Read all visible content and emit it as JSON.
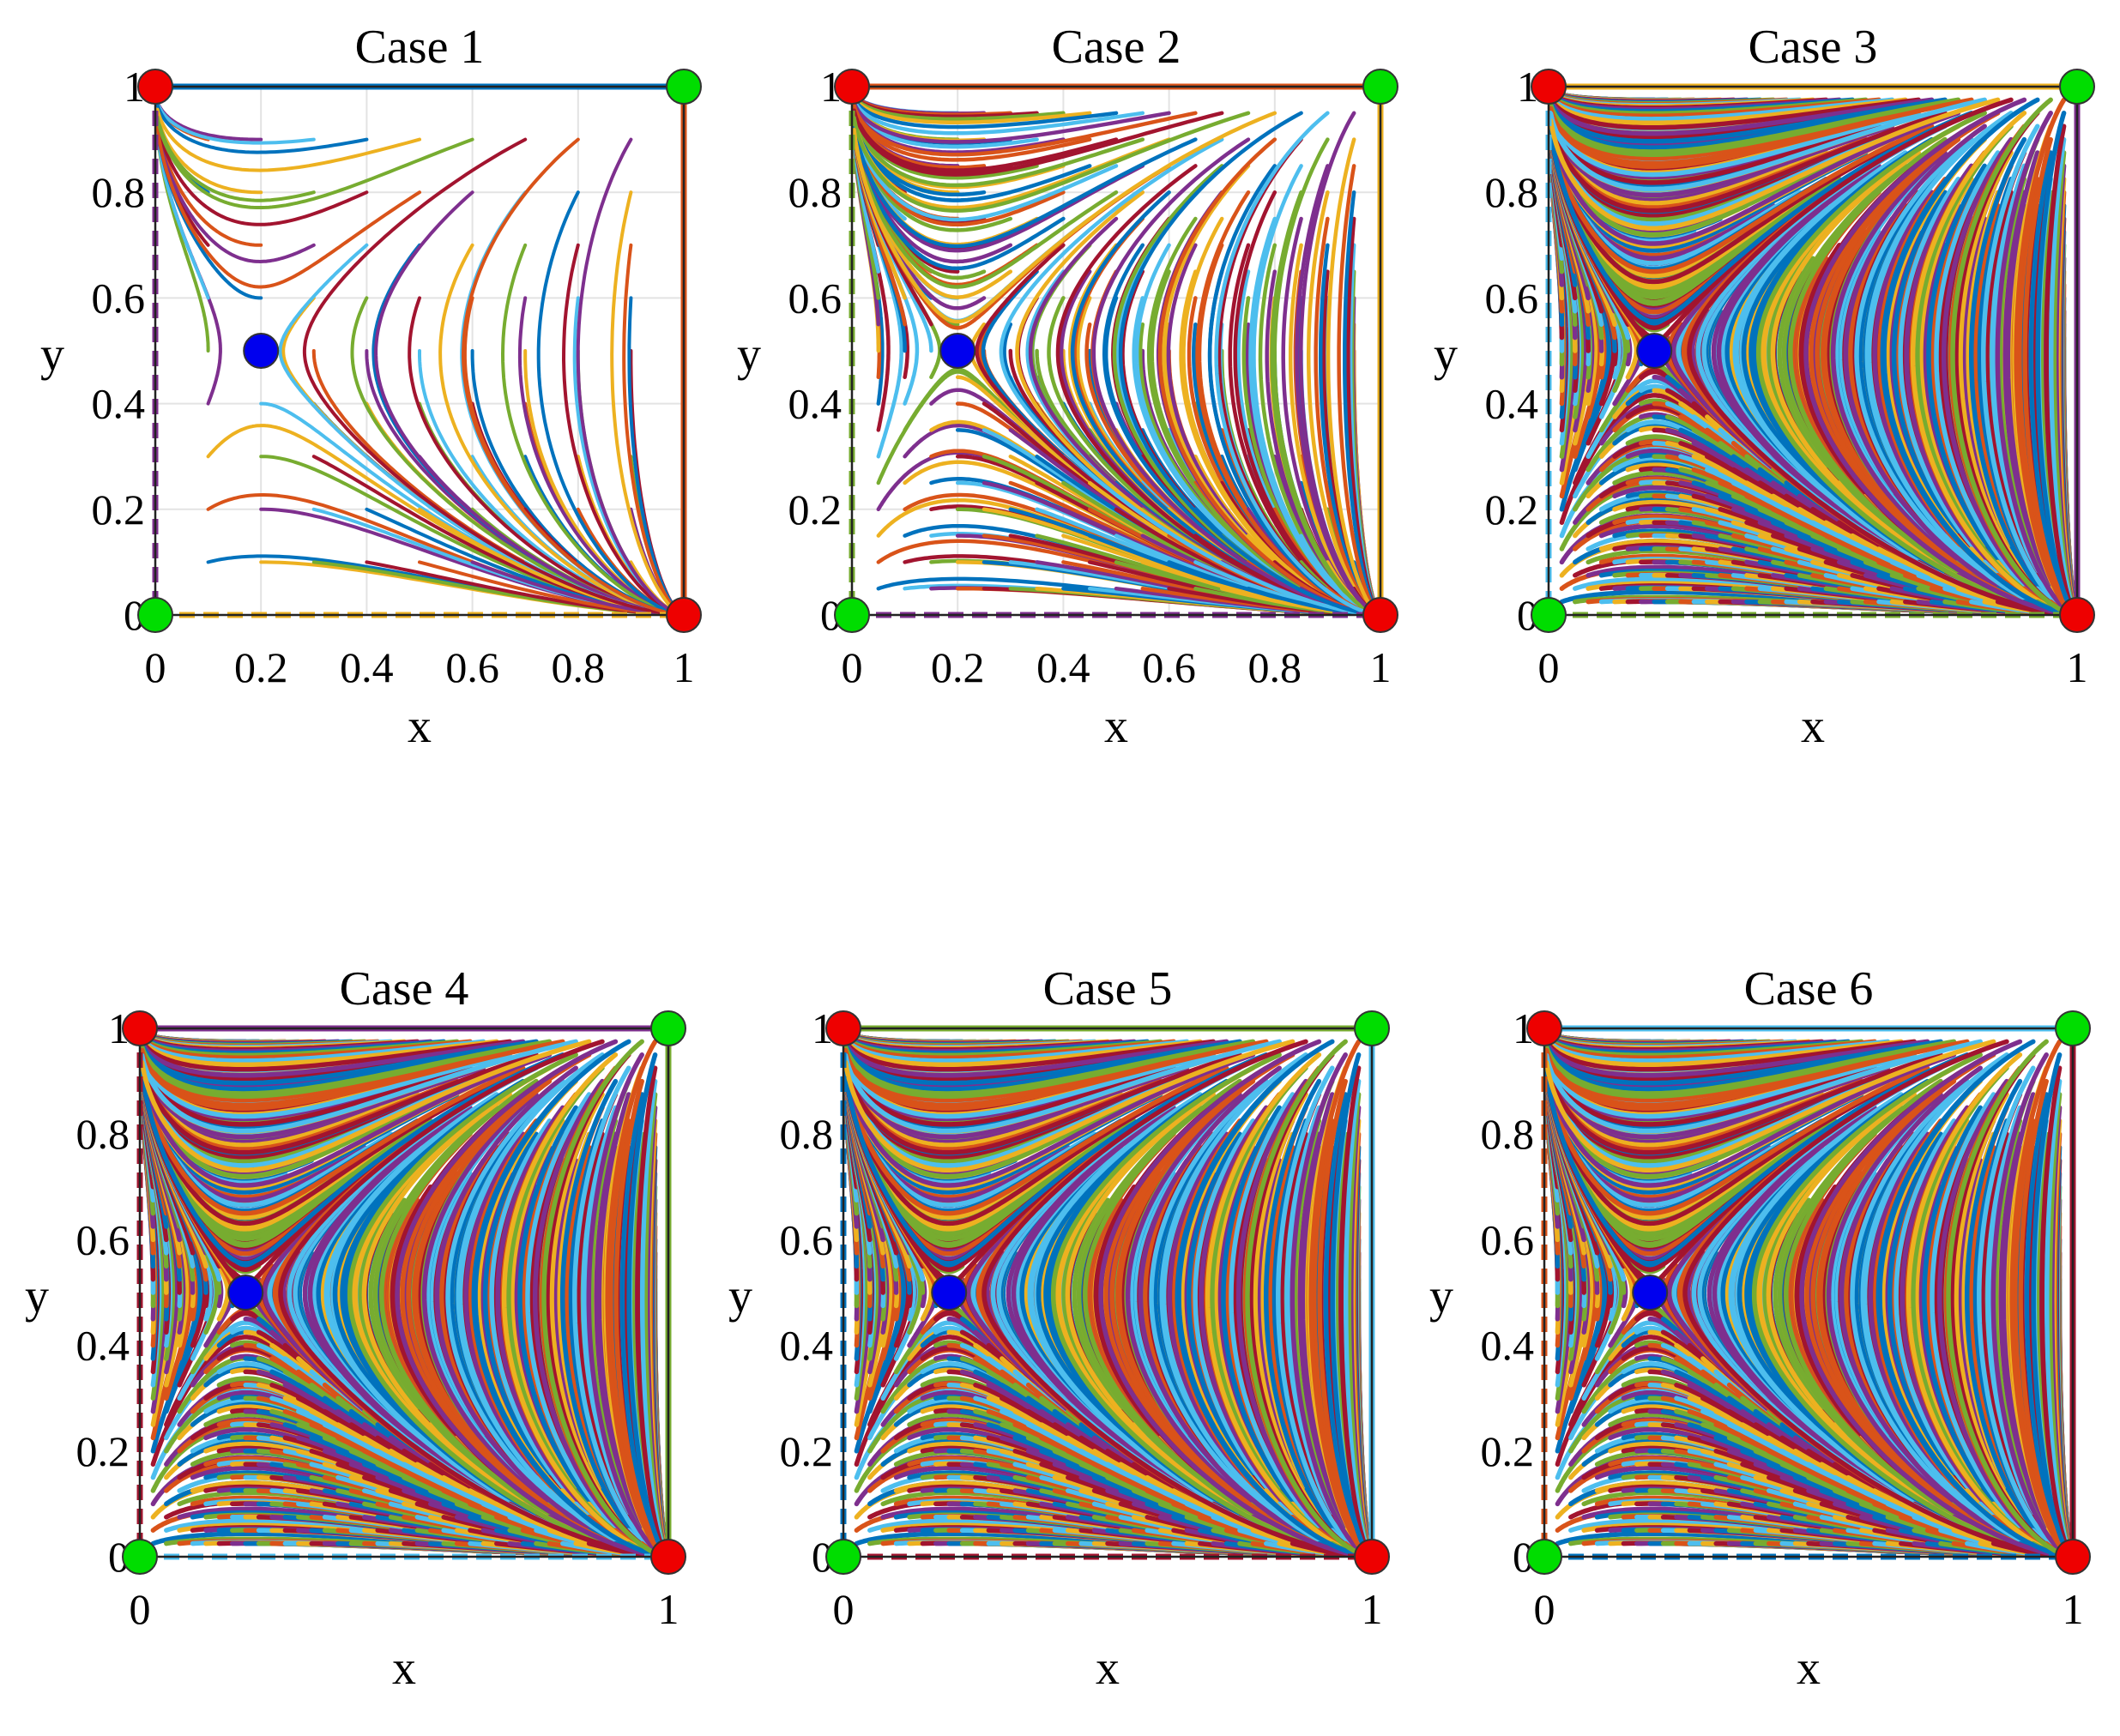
{
  "chart_data": [
    {
      "type": "line",
      "title": "Case 1",
      "xlabel": "x",
      "ylabel": "y",
      "xlim": [
        0,
        1
      ],
      "ylim": [
        0,
        1
      ],
      "xticks": [
        "0",
        "0.2",
        "0.4",
        "0.6",
        "0.8",
        "1"
      ],
      "yticks": [
        "0",
        "0.2",
        "0.4",
        "0.6",
        "0.8",
        "1"
      ],
      "grid": true,
      "density": "sparse",
      "stable_points": [
        [
          0,
          0
        ],
        [
          1,
          1
        ]
      ],
      "unstable_points": [
        [
          0,
          1
        ],
        [
          1,
          0
        ]
      ],
      "saddle_point": [
        0.2,
        0.5
      ]
    },
    {
      "type": "line",
      "title": "Case 2",
      "xlabel": "x",
      "ylabel": "y",
      "xlim": [
        0,
        1
      ],
      "ylim": [
        0,
        1
      ],
      "xticks": [
        "0",
        "0.2",
        "0.4",
        "0.6",
        "0.8",
        "1"
      ],
      "yticks": [
        "0",
        "0.2",
        "0.4",
        "0.6",
        "0.8",
        "1"
      ],
      "grid": true,
      "density": "medium",
      "stable_points": [
        [
          0,
          0
        ],
        [
          1,
          1
        ]
      ],
      "unstable_points": [
        [
          0,
          1
        ],
        [
          1,
          0
        ]
      ],
      "saddle_point": [
        0.2,
        0.5
      ]
    },
    {
      "type": "line",
      "title": "Case 3",
      "xlabel": "x",
      "ylabel": "y",
      "xlim": [
        0,
        1
      ],
      "ylim": [
        0,
        1
      ],
      "xticks": [
        "0",
        "1"
      ],
      "yticks": [
        "0",
        "0.2",
        "0.4",
        "0.6",
        "0.8",
        "1"
      ],
      "grid": false,
      "density": "dense",
      "stable_points": [
        [
          0,
          0
        ],
        [
          1,
          1
        ]
      ],
      "unstable_points": [
        [
          0,
          1
        ],
        [
          1,
          0
        ]
      ],
      "saddle_point": [
        0.2,
        0.5
      ]
    },
    {
      "type": "line",
      "title": "Case 4",
      "xlabel": "x",
      "ylabel": "y",
      "xlim": [
        0,
        1
      ],
      "ylim": [
        0,
        1
      ],
      "xticks": [
        "0",
        "1"
      ],
      "yticks": [
        "0",
        "0.2",
        "0.4",
        "0.6",
        "0.8",
        "1"
      ],
      "grid": false,
      "density": "dense",
      "stable_points": [
        [
          0,
          0
        ],
        [
          1,
          1
        ]
      ],
      "unstable_points": [
        [
          0,
          1
        ],
        [
          1,
          0
        ]
      ],
      "saddle_point": [
        0.2,
        0.5
      ]
    },
    {
      "type": "line",
      "title": "Case 5",
      "xlabel": "x",
      "ylabel": "y",
      "xlim": [
        0,
        1
      ],
      "ylim": [
        0,
        1
      ],
      "xticks": [
        "0",
        "1"
      ],
      "yticks": [
        "0",
        "0.2",
        "0.4",
        "0.6",
        "0.8",
        "1"
      ],
      "grid": false,
      "density": "dense",
      "stable_points": [
        [
          0,
          0
        ],
        [
          1,
          1
        ]
      ],
      "unstable_points": [
        [
          0,
          1
        ],
        [
          1,
          0
        ]
      ],
      "saddle_point": [
        0.2,
        0.5
      ]
    },
    {
      "type": "line",
      "title": "Case 6",
      "xlabel": "x",
      "ylabel": "y",
      "xlim": [
        0,
        1
      ],
      "ylim": [
        0,
        1
      ],
      "xticks": [
        "0",
        "1"
      ],
      "yticks": [
        "0",
        "0.2",
        "0.4",
        "0.6",
        "0.8",
        "1"
      ],
      "grid": false,
      "density": "dense",
      "stable_points": [
        [
          0,
          0
        ],
        [
          1,
          1
        ]
      ],
      "unstable_points": [
        [
          0,
          1
        ],
        [
          1,
          0
        ]
      ],
      "saddle_point": [
        0.2,
        0.5
      ]
    }
  ],
  "colors": {
    "stable": "#00dd00",
    "unstable": "#ee0000",
    "saddle": "#0000ee",
    "palette": [
      "#0072BD",
      "#D95319",
      "#EDB120",
      "#7E2F8E",
      "#77AC30",
      "#4DBEEE",
      "#A2142F"
    ]
  }
}
